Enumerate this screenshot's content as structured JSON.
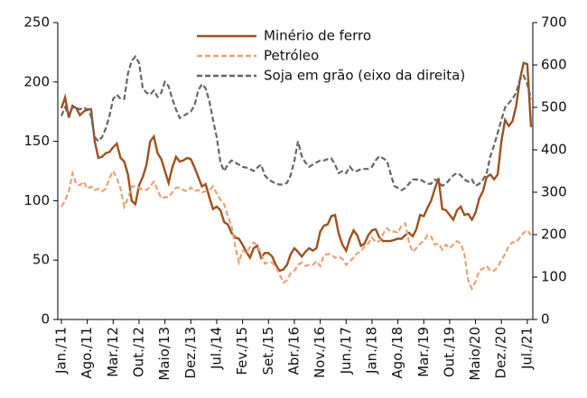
{
  "chart_data": {
    "type": "line",
    "categories": [
      "Jan./11",
      null,
      null,
      null,
      null,
      null,
      null,
      "Ago./11",
      null,
      null,
      null,
      null,
      null,
      null,
      "Mar./12",
      null,
      null,
      null,
      null,
      null,
      null,
      "Out./12",
      null,
      null,
      null,
      null,
      null,
      null,
      "Maio/13",
      null,
      null,
      null,
      null,
      null,
      null,
      "Dez./13",
      null,
      null,
      null,
      null,
      null,
      null,
      "Jul./14",
      null,
      null,
      null,
      null,
      null,
      null,
      "Fev./15",
      null,
      null,
      null,
      null,
      null,
      null,
      "Set./15",
      null,
      null,
      null,
      null,
      null,
      null,
      "Abr./16",
      null,
      null,
      null,
      null,
      null,
      null,
      "Nov./16",
      null,
      null,
      null,
      null,
      null,
      null,
      "Jun./17",
      null,
      null,
      null,
      null,
      null,
      null,
      "Jan./18",
      null,
      null,
      null,
      null,
      null,
      null,
      "Ago./18",
      null,
      null,
      null,
      null,
      null,
      null,
      "Mar./19",
      null,
      null,
      null,
      null,
      null,
      null,
      "Out./19",
      null,
      null,
      null,
      null,
      null,
      null,
      "Maio/20",
      null,
      null,
      null,
      null,
      null,
      null,
      "Dez./20",
      null,
      null,
      null,
      null,
      null,
      null,
      "Jul./21",
      null
    ],
    "series": [
      {
        "name": "Minério de ferro",
        "color": "#a0501e",
        "dashed": false,
        "values": [
          178,
          187,
          170,
          180,
          178,
          172,
          175,
          177,
          177,
          150,
          136,
          137,
          140,
          141,
          145,
          148,
          136,
          133,
          122,
          100,
          97,
          113,
          120,
          130,
          150,
          154,
          140,
          135,
          125,
          115,
          128,
          137,
          133,
          134,
          136,
          135,
          128,
          120,
          112,
          114,
          103,
          93,
          95,
          92,
          82,
          80,
          73,
          69,
          68,
          63,
          57,
          52,
          60,
          62,
          52,
          56,
          56,
          53,
          46,
          41,
          42,
          46,
          55,
          60,
          57,
          53,
          57,
          60,
          58,
          60,
          74,
          79,
          80,
          87,
          88,
          72,
          63,
          58,
          68,
          75,
          71,
          62,
          64,
          71,
          75,
          76,
          69,
          66,
          66,
          66,
          67,
          68,
          68,
          71,
          73,
          70,
          76,
          88,
          87,
          94,
          100,
          110,
          119,
          93,
          92,
          88,
          84,
          92,
          95,
          88,
          89,
          84,
          90,
          102,
          108,
          120,
          122,
          118,
          122,
          150,
          168,
          163,
          167,
          180,
          202,
          216,
          215,
          162
        ]
      },
      {
        "name": "Petróleo",
        "color": "#eba274",
        "dashed": true,
        "values": [
          95,
          100,
          108,
          123,
          114,
          113,
          116,
          110,
          112,
          109,
          110,
          108,
          110,
          119,
          125,
          119,
          110,
          95,
          102,
          112,
          112,
          111,
          109,
          109,
          112,
          116,
          109,
          102,
          103,
          103,
          107,
          111,
          111,
          109,
          108,
          111,
          108,
          109,
          107,
          108,
          109,
          112,
          106,
          101,
          97,
          87,
          79,
          62,
          48,
          58,
          56,
          61,
          65,
          62,
          56,
          47,
          48,
          48,
          44,
          38,
          31,
          33,
          39,
          41,
          46,
          48,
          45,
          46,
          46,
          49,
          45,
          54,
          55,
          55,
          52,
          53,
          51,
          46,
          49,
          52,
          56,
          57,
          62,
          64,
          69,
          65,
          66,
          72,
          77,
          74,
          74,
          73,
          79,
          81,
          65,
          57,
          60,
          64,
          66,
          71,
          70,
          63,
          64,
          59,
          63,
          60,
          63,
          66,
          64,
          55,
          33,
          26,
          32,
          41,
          43,
          45,
          41,
          41,
          44,
          50,
          55,
          62,
          65,
          65,
          69,
          73,
          75,
          71
        ]
      },
      {
        "name": "Soja em grão (eixo da direita)",
        "color": "#666666",
        "dashed": true,
        "axis": "y2",
        "values": [
          480,
          500,
          480,
          500,
          500,
          495,
          500,
          495,
          480,
          430,
          420,
          430,
          450,
          480,
          520,
          530,
          520,
          520,
          580,
          610,
          620,
          605,
          545,
          535,
          530,
          540,
          525,
          535,
          560,
          550,
          520,
          495,
          475,
          480,
          485,
          490,
          505,
          540,
          555,
          545,
          515,
          470,
          430,
          370,
          350,
          365,
          375,
          370,
          365,
          360,
          358,
          355,
          350,
          358,
          365,
          340,
          330,
          325,
          320,
          318,
          318,
          322,
          340,
          375,
          420,
          385,
          370,
          360,
          365,
          370,
          375,
          375,
          378,
          380,
          365,
          345,
          350,
          345,
          360,
          350,
          350,
          355,
          355,
          355,
          360,
          375,
          385,
          380,
          375,
          345,
          315,
          310,
          305,
          310,
          320,
          330,
          330,
          330,
          325,
          320,
          320,
          330,
          325,
          315,
          320,
          330,
          340,
          345,
          340,
          330,
          325,
          330,
          315,
          320,
          330,
          345,
          385,
          410,
          440,
          470,
          500,
          510,
          520,
          535,
          565,
          575,
          555,
          520
        ]
      }
    ],
    "ylim": [
      0,
      250
    ],
    "yticks": [
      0,
      50,
      100,
      150,
      200,
      250
    ],
    "y2lim": [
      0,
      700
    ],
    "y2ticks": [
      0,
      100,
      200,
      300,
      400,
      500,
      600,
      700
    ]
  }
}
